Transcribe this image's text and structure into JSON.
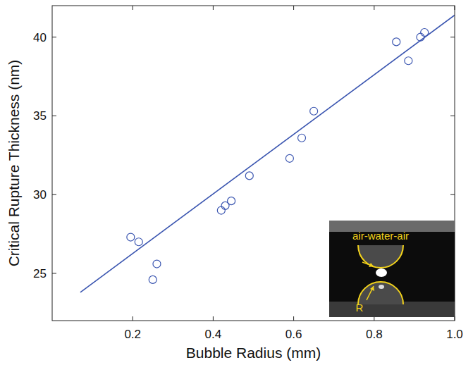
{
  "chart_data": {
    "type": "scatter",
    "x_label": "Bubble Radius (mm)",
    "y_label": "Critical Rupture Thickness (nm)",
    "xlim": [
      0,
      1.0
    ],
    "ylim": [
      22,
      42
    ],
    "xticks": [
      0.2,
      0.4,
      0.6,
      0.8,
      {
        "value": 1,
        "label": "1.0"
      }
    ],
    "yticks": [
      25,
      30,
      35,
      40
    ],
    "grid": false,
    "annotations": [
      "air-water-air",
      "R"
    ],
    "series": [
      {
        "type": "scatter",
        "marker": "circle",
        "color": "#3a55b0",
        "x": [
          0.195,
          0.215,
          0.25,
          0.26,
          0.42,
          0.43,
          0.445,
          0.49,
          0.59,
          0.62,
          0.65,
          0.855,
          0.885,
          0.915,
          0.925
        ],
        "values": [
          27.3,
          27.0,
          24.6,
          25.6,
          29.0,
          29.3,
          29.6,
          31.2,
          32.3,
          33.6,
          35.3,
          39.7,
          38.5,
          40.0,
          40.3
        ]
      },
      {
        "type": "line",
        "line_style": "solid",
        "color": "#3a55b0",
        "x": [
          0.07,
          1.0
        ],
        "values": [
          23.8,
          41.4
        ]
      }
    ]
  }
}
